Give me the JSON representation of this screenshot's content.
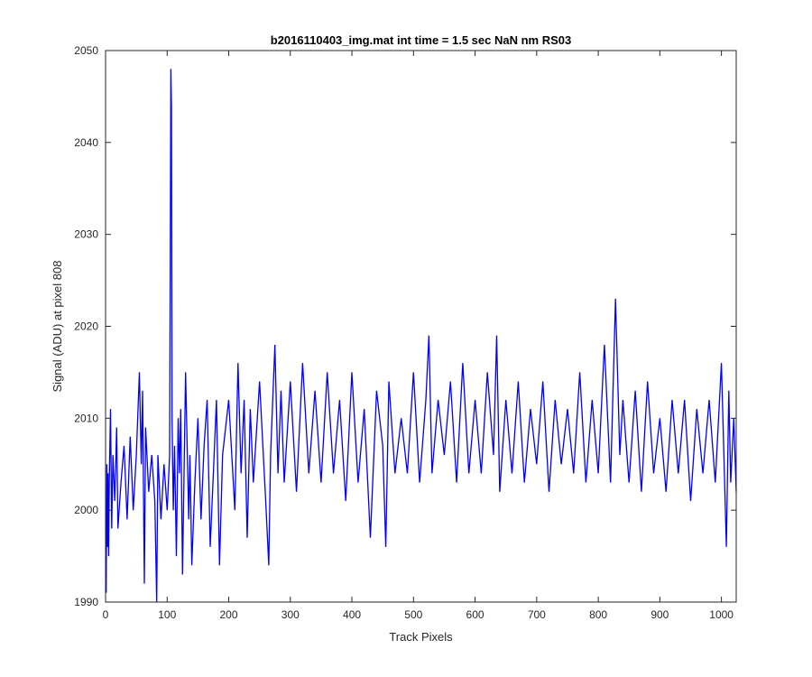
{
  "chart_data": {
    "type": "line",
    "title": "b2016110403_img.mat int time = 1.5 sec  NaN nm RS03",
    "xlabel": "Track Pixels",
    "ylabel": "Signal (ADU) at pixel 808",
    "xlim": [
      0,
      1024
    ],
    "ylim": [
      1990,
      2050
    ],
    "xticks": [
      0,
      100,
      200,
      300,
      400,
      500,
      600,
      700,
      800,
      900,
      1000
    ],
    "yticks": [
      1990,
      2000,
      2010,
      2020,
      2030,
      2040,
      2050
    ],
    "grid": false,
    "line_color": "#0000ff",
    "series": [
      {
        "x": [
          1,
          2,
          3,
          4,
          5,
          6,
          8,
          10,
          12,
          15,
          18,
          20,
          25,
          30,
          35,
          40,
          45,
          50,
          55,
          58,
          60,
          63,
          65,
          70,
          75,
          80,
          83,
          85,
          90,
          95,
          100,
          104,
          106,
          107,
          108,
          110,
          112,
          115,
          118,
          120,
          122,
          125,
          130,
          135,
          137,
          140,
          145,
          150,
          155,
          160,
          165,
          170,
          175,
          180,
          185,
          190,
          200,
          210,
          215,
          220,
          225,
          230,
          235,
          240,
          250,
          260,
          265,
          268,
          275,
          280,
          285,
          290,
          300,
          310,
          320,
          330,
          340,
          350,
          360,
          370,
          380,
          390,
          400,
          410,
          420,
          430,
          440,
          450,
          455,
          460,
          470,
          480,
          490,
          500,
          510,
          520,
          525,
          530,
          540,
          550,
          560,
          570,
          580,
          590,
          600,
          610,
          620,
          630,
          635,
          640,
          650,
          660,
          670,
          680,
          690,
          700,
          710,
          720,
          730,
          740,
          750,
          760,
          770,
          780,
          790,
          800,
          810,
          820,
          828,
          835,
          840,
          850,
          860,
          870,
          880,
          890,
          900,
          910,
          920,
          930,
          940,
          950,
          960,
          970,
          980,
          990,
          1000,
          1008,
          1012,
          1015,
          1020,
          1024
        ],
        "y": [
          1991,
          2005,
          1996,
          2004,
          1995,
          2003,
          2011,
          1998,
          2006,
          2001,
          2009,
          1998,
          2003,
          2007,
          1999,
          2008,
          2000,
          2006,
          2015,
          2005,
          2013,
          1992,
          2009,
          2002,
          2006,
          2001,
          1990,
          2006,
          1999,
          2005,
          2000,
          2006,
          2048,
          2044,
          2010,
          2000,
          2007,
          1995,
          2010,
          2004,
          2011,
          1993,
          2015,
          1999,
          2006,
          1994,
          2003,
          2010,
          1999,
          2007,
          2012,
          1996,
          2004,
          2012,
          1994,
          2006,
          2012,
          2000,
          2016,
          2004,
          2012,
          1997,
          2011,
          2003,
          2014,
          2001,
          1994,
          2006,
          2018,
          2004,
          2013,
          2003,
          2014,
          2002,
          2016,
          2004,
          2013,
          2003,
          2015,
          2004,
          2012,
          2001,
          2015,
          2003,
          2011,
          1997,
          2013,
          2007,
          1996,
          2014,
          2004,
          2010,
          2004,
          2015,
          2003,
          2012,
          2019,
          2004,
          2012,
          2006,
          2014,
          2003,
          2016,
          2004,
          2012,
          2004,
          2015,
          2006,
          2019,
          2002,
          2012,
          2004,
          2014,
          2003,
          2011,
          2005,
          2014,
          2002,
          2012,
          2005,
          2011,
          2004,
          2015,
          2003,
          2012,
          2004,
          2018,
          2003,
          2023,
          2006,
          2012,
          2003,
          2013,
          2002,
          2014,
          2004,
          2010,
          2002,
          2012,
          2004,
          2012,
          2001,
          2011,
          2004,
          2012,
          2003,
          2016,
          1996,
          2013,
          2003,
          2010,
          2002
        ]
      }
    ]
  }
}
